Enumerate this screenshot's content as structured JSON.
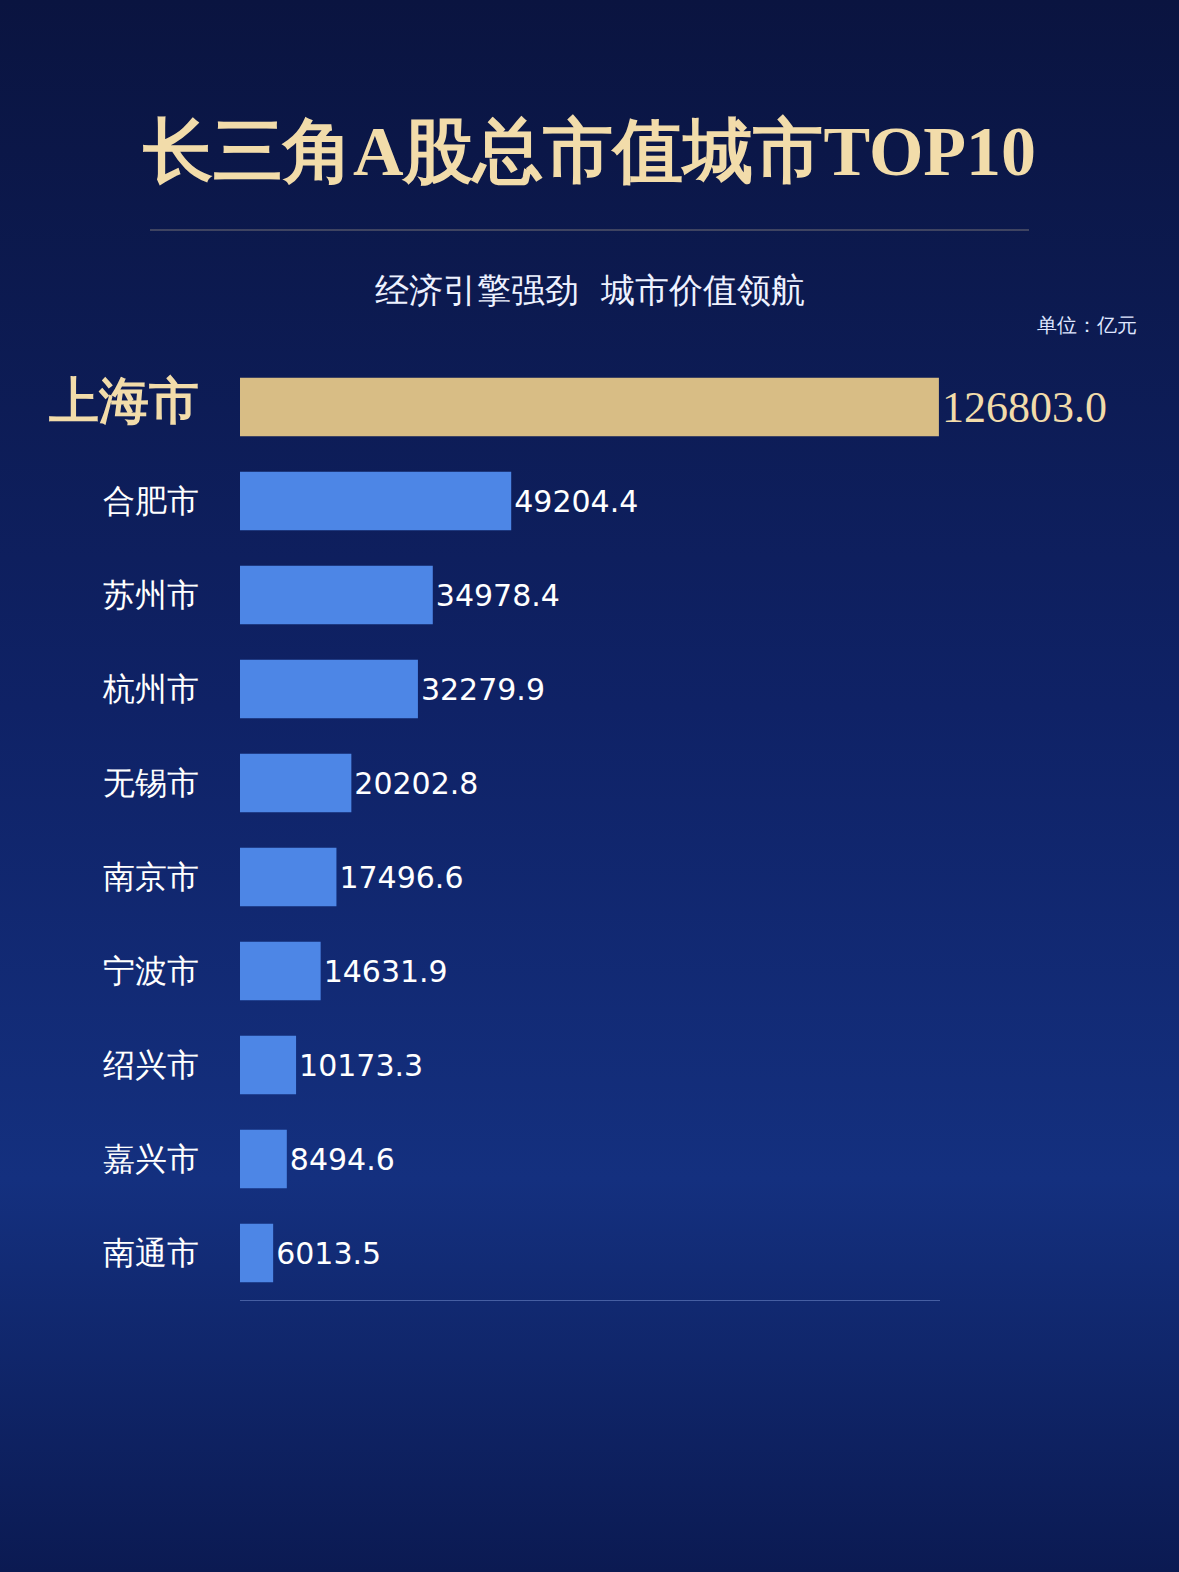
{
  "chart_data": {
    "type": "bar",
    "orientation": "horizontal",
    "title": "长三角A股总市值城市TOP10",
    "subtitle": "经济引擎强劲  城市价值领航",
    "unit_label": "单位：亿元",
    "categories": [
      "上海市",
      "合肥市",
      "苏州市",
      "杭州市",
      "无锡市",
      "南京市",
      "宁波市",
      "绍兴市",
      "嘉兴市",
      "南通市"
    ],
    "values": [
      126803.0,
      49204.4,
      34978.4,
      32279.9,
      20202.8,
      17496.6,
      14631.9,
      10173.3,
      8494.6,
      6013.5
    ],
    "value_labels": [
      "126803.0",
      "49204.4",
      "34978.4",
      "32279.9",
      "20202.8",
      "17496.6",
      "14631.9",
      "10173.3",
      "8494.6",
      "6013.5"
    ],
    "colors": [
      "#d8bd85",
      "#4d86e6",
      "#4d86e6",
      "#4d86e6",
      "#4d86e6",
      "#4d86e6",
      "#4d86e6",
      "#4d86e6",
      "#4d86e6",
      "#4d86e6"
    ],
    "xlim": [
      0,
      127000
    ],
    "data_labels": true,
    "tick_labels": "y",
    "grid": false
  }
}
